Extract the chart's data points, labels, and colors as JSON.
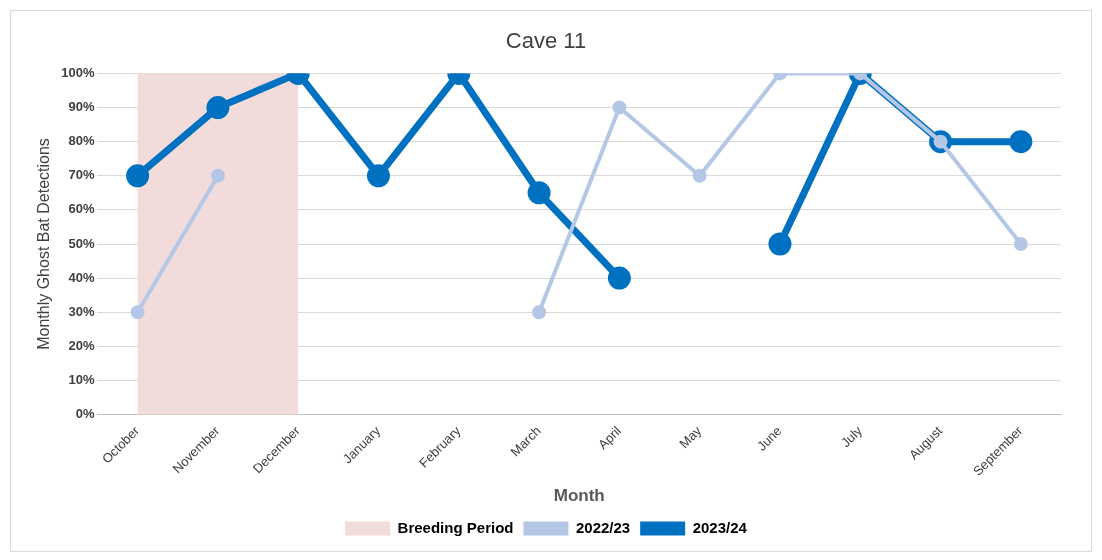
{
  "chart_data": {
    "type": "line",
    "title": "Cave 11",
    "xlabel": "Month",
    "ylabel": "Monthly Ghost Bat Detections",
    "categories": [
      "October",
      "November",
      "December",
      "January",
      "February",
      "March",
      "April",
      "May",
      "June",
      "July",
      "August",
      "September"
    ],
    "series": [
      {
        "name": "2022/23",
        "color": "#b4c7e7",
        "values": [
          30,
          70,
          null,
          null,
          null,
          30,
          90,
          70,
          100,
          100,
          80,
          50
        ]
      },
      {
        "name": "2023/24",
        "color": "#0070c0",
        "values": [
          70,
          90,
          100,
          70,
          100,
          65,
          40,
          null,
          50,
          100,
          80,
          80
        ]
      }
    ],
    "ylim": [
      0,
      100
    ],
    "yticks": [
      {
        "value": 0,
        "label": "0%"
      },
      {
        "value": 10,
        "label": "10%"
      },
      {
        "value": 20,
        "label": "20%"
      },
      {
        "value": 30,
        "label": "30%"
      },
      {
        "value": 40,
        "label": "40%"
      },
      {
        "value": 50,
        "label": "50%"
      },
      {
        "value": 60,
        "label": "60%"
      },
      {
        "value": 70,
        "label": "70%"
      },
      {
        "value": 80,
        "label": "80%"
      },
      {
        "value": 90,
        "label": "90%"
      },
      {
        "value": 100,
        "label": "100%"
      }
    ],
    "bands": [
      {
        "axis": "x",
        "from": "October",
        "to": "December",
        "label": "Breeding Period",
        "color": "#f2dcdb"
      }
    ],
    "grid": "y",
    "legend": "bottom",
    "marker": "circle",
    "line_style": "solid"
  }
}
